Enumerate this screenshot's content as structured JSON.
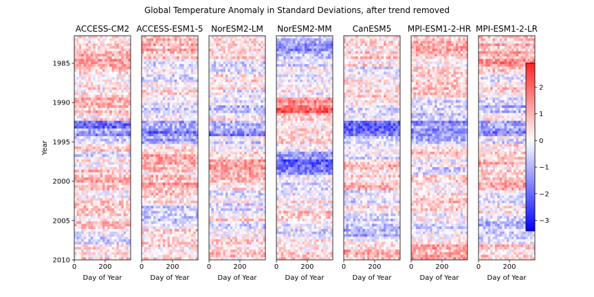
{
  "chart_data": {
    "type": "heatmap",
    "title": "Global Temperature Anomaly in Standard Deviations, after trend removed",
    "ylabel": "Year",
    "xlabel": "Day of Year",
    "xlim": [
      0,
      365
    ],
    "ylim": [
      1981.5,
      2010
    ],
    "x_ticks": [
      0,
      200
    ],
    "y_ticks": [
      1985,
      1990,
      1995,
      2000,
      2005,
      2010
    ],
    "colormap": "bwr",
    "colorbar": {
      "vmin": -3.4,
      "vmax": 2.9,
      "ticks": [
        2,
        1,
        0,
        -1,
        -2,
        -3
      ]
    },
    "colors": {
      "low": "#0000ff",
      "mid": "#ffffff",
      "high": "#ff0000"
    },
    "panels": [
      {
        "model": "ACCESS-CM2",
        "year_profile": [
          0.3,
          0.6,
          0.9,
          1.1,
          0.5,
          -0.1,
          0.7,
          0.3,
          0.9,
          1.2,
          0.5,
          -2.0,
          -1.6,
          -0.7,
          0.9,
          -0.2,
          0.4,
          0.6,
          1.1,
          0.8,
          0.3,
          0.7,
          1.0,
          0.4,
          0.9,
          -0.3,
          -0.6,
          0.2,
          0.6
        ]
      },
      {
        "model": "ACCESS-ESM1-5",
        "year_profile": [
          0.8,
          1.1,
          0.6,
          -0.6,
          0.2,
          -0.7,
          -0.3,
          0.2,
          0.1,
          -0.6,
          -0.3,
          -1.5,
          -2.1,
          -1.2,
          0.1,
          1.1,
          1.4,
          0.6,
          1.0,
          1.2,
          0.6,
          0.4,
          -0.6,
          -0.8,
          -0.3,
          0.6,
          0.3,
          0.5,
          0.8
        ]
      },
      {
        "model": "NorESM2-LM",
        "year_profile": [
          0.5,
          0.9,
          0.3,
          -0.4,
          -0.6,
          0.2,
          0.6,
          -0.3,
          -0.4,
          -0.7,
          0.2,
          -1.4,
          -1.8,
          -0.4,
          -0.3,
          0.8,
          1.2,
          1.5,
          1.3,
          0.2,
          -0.5,
          -0.3,
          -0.4,
          0.4,
          -0.3,
          0.1,
          0.8,
          0.4,
          0.6
        ]
      },
      {
        "model": "NorESM2-MM",
        "year_profile": [
          -0.8,
          -1.4,
          -1.2,
          -0.5,
          0.3,
          -0.4,
          -0.2,
          0.1,
          1.9,
          2.4,
          0.7,
          0.3,
          0.8,
          0.6,
          0.1,
          -2.0,
          -2.6,
          -1.7,
          -0.4,
          -0.7,
          -0.2,
          0.2,
          0.6,
          0.8,
          -0.3,
          -0.5,
          0.2,
          0.4,
          0.6
        ]
      },
      {
        "model": "CanESM5",
        "year_profile": [
          0.5,
          0.3,
          0.6,
          0.4,
          -0.3,
          0.4,
          0.3,
          0.6,
          0.1,
          -0.4,
          -0.2,
          -2.1,
          -2.3,
          -0.6,
          -0.4,
          -0.2,
          0.9,
          0.6,
          0.7,
          0.9,
          -0.2,
          -0.5,
          0.5,
          -0.7,
          -0.6,
          -0.9,
          0.4,
          0.9,
          1.3
        ]
      },
      {
        "model": "MPI-ESM1-2-HR",
        "year_profile": [
          0.7,
          1.1,
          0.8,
          0.4,
          0.7,
          0.4,
          1.0,
          0.8,
          -0.5,
          -0.3,
          -0.6,
          -1.6,
          -2.0,
          -1.2,
          0.4,
          0.5,
          0.2,
          -0.4,
          0.3,
          -0.2,
          0.2,
          0.9,
          0.4,
          0.2,
          -0.5,
          -0.3,
          0.5,
          1.3,
          1.6
        ]
      },
      {
        "model": "MPI-ESM1-2-LR",
        "year_profile": [
          0.4,
          1.0,
          1.4,
          1.8,
          0.6,
          -0.6,
          0.5,
          0.2,
          -0.8,
          -0.9,
          0.3,
          -1.2,
          -1.8,
          -0.4,
          0.6,
          1.0,
          1.3,
          0.4,
          0.8,
          1.0,
          -0.3,
          -0.2,
          0.4,
          -0.3,
          -0.8,
          -0.5,
          -0.3,
          0.8,
          0.5
        ]
      }
    ]
  }
}
